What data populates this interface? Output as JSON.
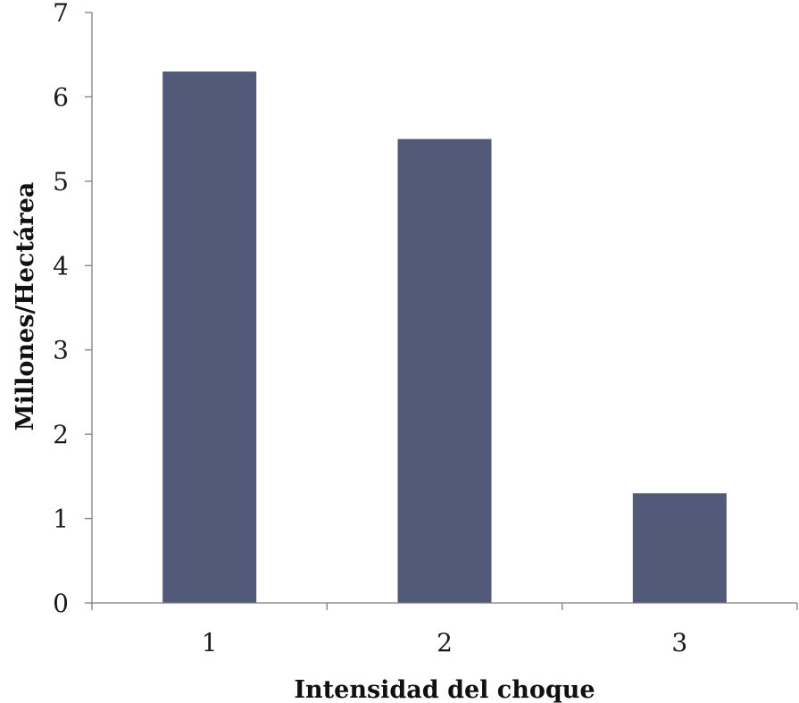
{
  "chart_data": {
    "type": "bar",
    "categories": [
      "1",
      "2",
      "3"
    ],
    "values": [
      6.3,
      5.5,
      1.3
    ],
    "xlabel": "Intensidad del choque",
    "ylabel": "Millones/Hectárea",
    "ylim": [
      0,
      7
    ],
    "yticks": [
      "0",
      "1",
      "2",
      "3",
      "4",
      "5",
      "6",
      "7"
    ],
    "grid": false,
    "legend": "none",
    "bar_color": "#525a7a"
  }
}
